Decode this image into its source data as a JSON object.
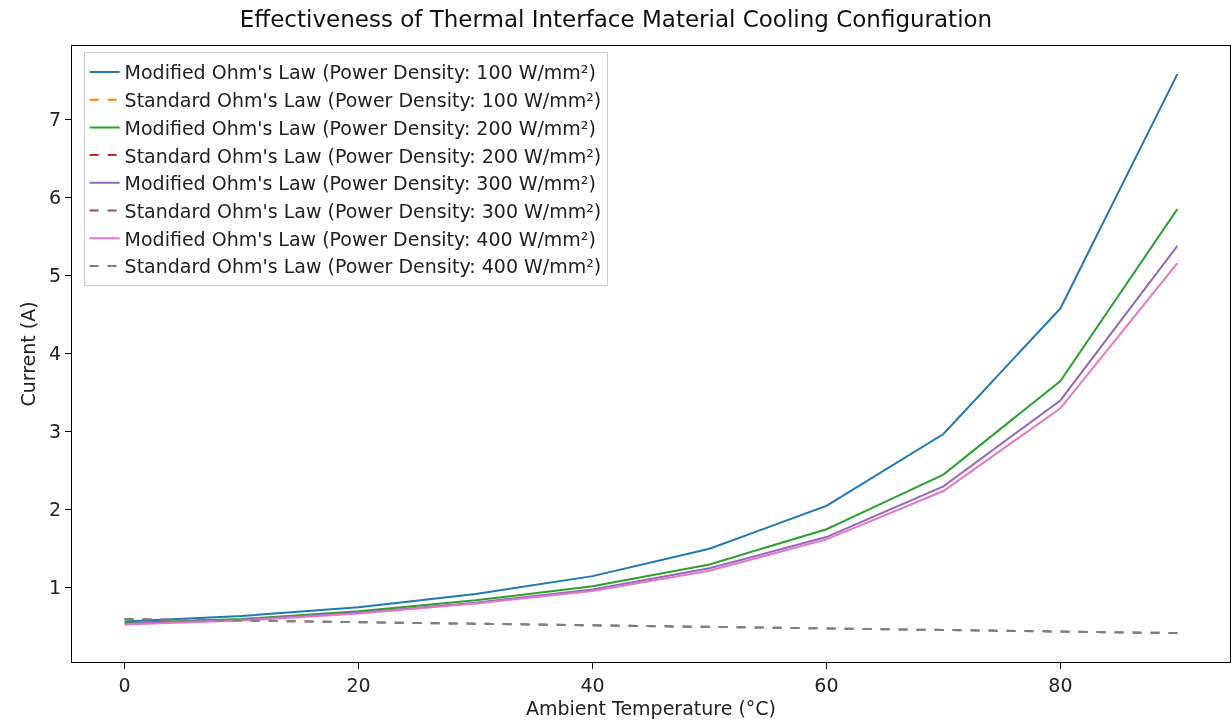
{
  "chart_data": {
    "type": "line",
    "title": "Effectiveness of Thermal Interface Material Cooling Configuration",
    "xlabel": "Ambient Temperature (°C)",
    "ylabel": "Current (A)",
    "x": [
      0,
      10,
      20,
      30,
      40,
      50,
      60,
      70,
      80,
      90
    ],
    "series": [
      {
        "name": "Modified Ohm's Law (Power Density: 100 W/mm²)",
        "color": "#1f77b4",
        "line_style": "solid",
        "values": [
          0.57,
          0.64,
          0.75,
          0.92,
          1.15,
          1.5,
          2.05,
          2.97,
          4.58,
          7.58
        ]
      },
      {
        "name": "Standard Ohm's Law (Power Density: 100 W/mm²)",
        "color": "#ff7f0e",
        "line_style": "dashed",
        "values": [
          null,
          null,
          null,
          null,
          null,
          null,
          null,
          null,
          null,
          null
        ]
      },
      {
        "name": "Modified Ohm's Law (Power Density: 200 W/mm²)",
        "color": "#2ca02c",
        "line_style": "solid",
        "values": [
          0.55,
          0.6,
          0.7,
          0.84,
          1.02,
          1.3,
          1.75,
          2.45,
          3.65,
          5.85
        ]
      },
      {
        "name": "Standard Ohm's Law (Power Density: 200 W/mm²)",
        "color": "#d62728",
        "line_style": "dashed",
        "values": [
          null,
          null,
          null,
          null,
          null,
          null,
          null,
          null,
          null,
          null
        ]
      },
      {
        "name": "Modified Ohm's Law (Power Density: 300 W/mm²)",
        "color": "#9467bd",
        "line_style": "solid",
        "values": [
          0.54,
          0.59,
          0.68,
          0.81,
          0.98,
          1.25,
          1.65,
          2.3,
          3.4,
          5.38
        ]
      },
      {
        "name": "Standard Ohm's Law (Power Density: 300 W/mm²)",
        "color": "#8c564b",
        "line_style": "dashed",
        "values": [
          0.6,
          0.58,
          0.56,
          0.54,
          0.52,
          0.5,
          0.48,
          0.46,
          0.44,
          0.42
        ]
      },
      {
        "name": "Modified Ohm's Law (Power Density: 400 W/mm²)",
        "color": "#e377c2",
        "line_style": "solid",
        "values": [
          0.53,
          0.58,
          0.67,
          0.8,
          0.96,
          1.22,
          1.62,
          2.24,
          3.3,
          5.16
        ]
      },
      {
        "name": "Standard Ohm's Law (Power Density: 400 W/mm²)",
        "color": "#7f7f7f",
        "line_style": "dashed",
        "values": [
          0.6,
          0.58,
          0.56,
          0.54,
          0.52,
          0.5,
          0.48,
          0.46,
          0.44,
          0.42
        ]
      }
    ],
    "xlim": [
      -4.5,
      94.5
    ],
    "xticks": [
      0,
      20,
      40,
      60,
      80
    ],
    "ylim": [
      0.05,
      7.94
    ],
    "yticks": [
      1,
      2,
      3,
      4,
      5,
      6,
      7
    ],
    "grid": false,
    "legend": "top left",
    "marker": "none"
  }
}
